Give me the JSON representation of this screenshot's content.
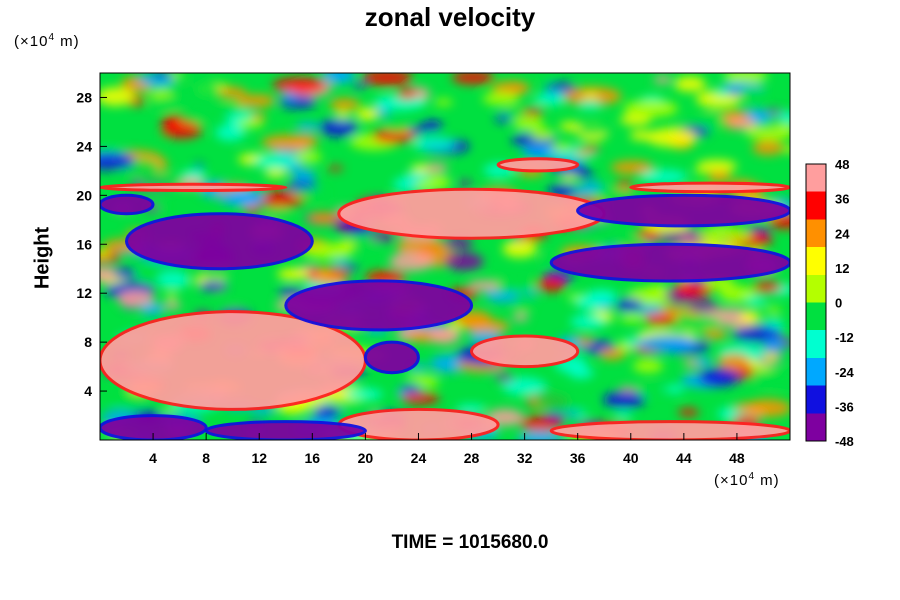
{
  "chart_data": {
    "type": "heatmap",
    "title": "zonal velocity",
    "ylabel": "Height",
    "xlabel": "",
    "x_unit": {
      "base": "(×10",
      "exp": "4",
      "tail": " m)"
    },
    "y_unit": {
      "base": "(×10",
      "exp": "4",
      "tail": " m)"
    },
    "xlim": [
      0,
      52
    ],
    "ylim": [
      0,
      30
    ],
    "x_ticks": [
      4,
      8,
      12,
      16,
      20,
      24,
      28,
      32,
      36,
      40,
      44,
      48
    ],
    "y_ticks": [
      4,
      8,
      12,
      16,
      20,
      24,
      28
    ],
    "colorbar": {
      "min": -48,
      "max": 48,
      "ticks": [
        48,
        36,
        24,
        12,
        0,
        -12,
        -24,
        -36,
        -48
      ],
      "colors": [
        "#7e00a0",
        "#1010e0",
        "#00a8ff",
        "#00ffd0",
        "#00e040",
        "#b4ff00",
        "#ffff00",
        "#ff9000",
        "#ff0000",
        "#ff9e9e"
      ]
    },
    "regions": [
      {
        "kind": "high",
        "x": [
          0,
          20
        ],
        "y": [
          2.5,
          10.5
        ],
        "value": 48
      },
      {
        "kind": "high",
        "x": [
          18,
          38
        ],
        "y": [
          16.5,
          20.5
        ],
        "value": 48
      },
      {
        "kind": "high",
        "x": [
          28,
          36
        ],
        "y": [
          6,
          8.5
        ],
        "value": 40
      },
      {
        "kind": "high",
        "x": [
          18,
          30
        ],
        "y": [
          0,
          2.5
        ],
        "value": 40
      },
      {
        "kind": "high",
        "x": [
          34,
          52
        ],
        "y": [
          0,
          1.5
        ],
        "value": 40
      },
      {
        "kind": "high",
        "x": [
          40,
          52
        ],
        "y": [
          20.3,
          21
        ],
        "value": 48
      },
      {
        "kind": "high",
        "x": [
          0,
          14
        ],
        "y": [
          20.4,
          20.9
        ],
        "value": 48
      },
      {
        "kind": "high",
        "x": [
          30,
          36
        ],
        "y": [
          22,
          23
        ],
        "value": 40
      },
      {
        "kind": "low",
        "x": [
          2,
          16
        ],
        "y": [
          14,
          18.5
        ],
        "value": -48
      },
      {
        "kind": "low",
        "x": [
          14,
          28
        ],
        "y": [
          9,
          13
        ],
        "value": -48
      },
      {
        "kind": "low",
        "x": [
          36,
          52
        ],
        "y": [
          17.5,
          20
        ],
        "value": -48
      },
      {
        "kind": "low",
        "x": [
          20,
          24
        ],
        "y": [
          5.5,
          8
        ],
        "value": -48
      },
      {
        "kind": "low",
        "x": [
          0,
          4
        ],
        "y": [
          18.5,
          20
        ],
        "value": -48
      },
      {
        "kind": "low",
        "x": [
          0,
          8
        ],
        "y": [
          0,
          2
        ],
        "value": -48
      },
      {
        "kind": "low",
        "x": [
          8,
          20
        ],
        "y": [
          0,
          1.5
        ],
        "value": -48
      },
      {
        "kind": "low",
        "x": [
          34,
          52
        ],
        "y": [
          13,
          16
        ],
        "value": -40
      }
    ]
  },
  "footer": {
    "time_label": "TIME = 1015680.0"
  }
}
